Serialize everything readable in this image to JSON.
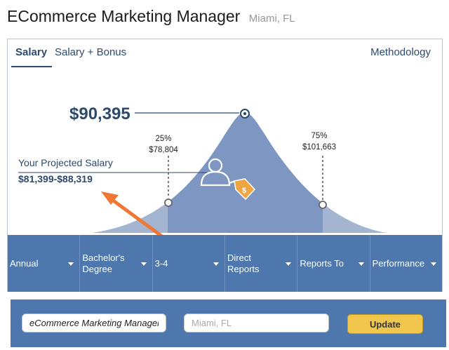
{
  "header": {
    "title": "ECommerce Marketing Manager",
    "location": "Miami, FL"
  },
  "tabs": [
    {
      "label": "Salary"
    },
    {
      "label": "Salary + Bonus"
    }
  ],
  "methodology_label": "Methodology",
  "salary": {
    "median": "$90,395",
    "p25": {
      "pct": "25%",
      "value": "$78,804"
    },
    "p75": {
      "pct": "75%",
      "value": "$101,663"
    },
    "projected_label": "Your Projected Salary",
    "projected_range": "$81,399-$88,319"
  },
  "filters": [
    {
      "label": "Annual"
    },
    {
      "label": "Bachelor's Degree"
    },
    {
      "label": "3-4"
    },
    {
      "label": "Direct Reports"
    },
    {
      "label": "Reports To"
    },
    {
      "label": "Performance"
    }
  ],
  "search": {
    "job_value": "eCommerce Marketing Manager",
    "location_placeholder": "Miami, FL",
    "update_label": "Update"
  },
  "colors": {
    "accent": "#4e78ad",
    "curve_light": "#a3b5d1",
    "curve_dark": "#7d96c2",
    "arrow": "#ef7836",
    "button": "#f0c64c"
  }
}
